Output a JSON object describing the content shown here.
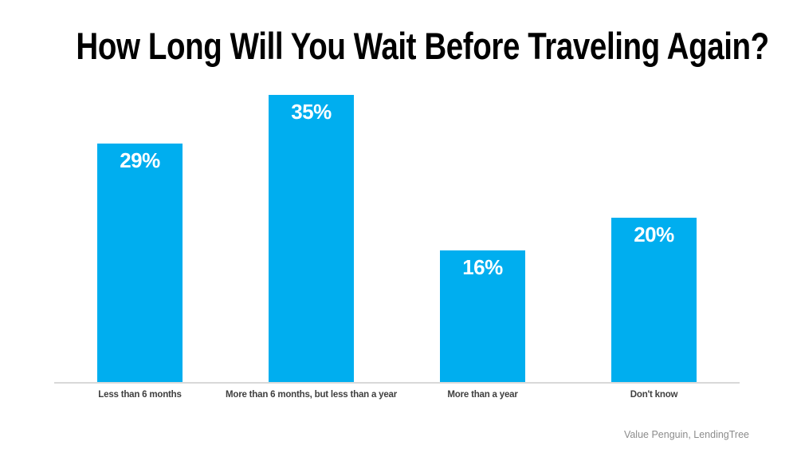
{
  "title": "How Long Will You Wait Before Traveling Again?",
  "source": "Value Penguin, LendingTree",
  "colors": {
    "bar": "#00aeef",
    "bar_value_text": "#ffffff",
    "title_text": "#000000",
    "category_text": "#3f3f3f",
    "axis_line": "#d9d9d9",
    "source_text": "#8c8c8c",
    "background": "#ffffff"
  },
  "chart_data": {
    "type": "bar",
    "title": "How Long Will You Wait Before Traveling Again?",
    "categories": [
      "Less than 6 months",
      "More than 6 months, but less than a year",
      "More than a year",
      "Don't know"
    ],
    "values": [
      29,
      35,
      16,
      20
    ],
    "value_labels": [
      "29%",
      "35%",
      "16%",
      "20%"
    ],
    "xlabel": "",
    "ylabel": "",
    "ylim": [
      0,
      36.5
    ],
    "grid": false,
    "legend": false,
    "annotation_source": "Value Penguin, LendingTree"
  }
}
